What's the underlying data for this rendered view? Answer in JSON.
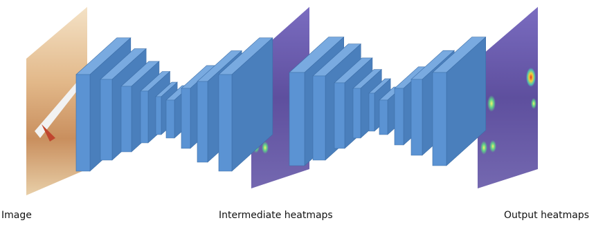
{
  "labels": {
    "image": "Image",
    "intermediate": "Intermediate heatmaps",
    "output": "Output heatmaps"
  }
}
